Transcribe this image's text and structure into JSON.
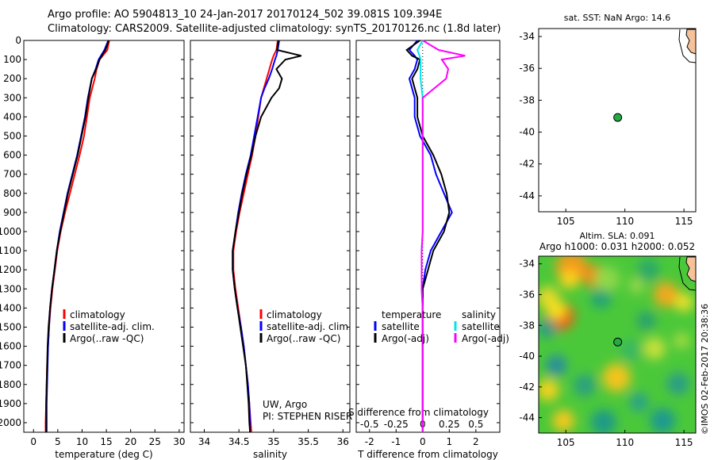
{
  "header": {
    "line1": "Argo profile: AO 5904813_10 24-Jan-2017 20170124_502 39.081S 109.394E",
    "line2": "Climatology: CARS2009. Satellite-adjusted climatology: synTS_20170126.nc (1.8d later)"
  },
  "depth_ticks": [
    "0",
    "100",
    "200",
    "300",
    "400",
    "500",
    "600",
    "700",
    "800",
    "900",
    "1000",
    "1100",
    "1200",
    "1300",
    "1400",
    "1500",
    "1600",
    "1700",
    "1800",
    "1900",
    "2000"
  ],
  "colors": {
    "climatology": "#ff0000",
    "satellite": "#0000ff",
    "argo": "#000000",
    "salinity_satellite": "#00e5ee",
    "salinity_argo": "#ff00ff",
    "land": "#f5c29a",
    "float_marker": "#22aa44"
  },
  "footer_stamp": "©IMOS 02-Feb-2017 20:38:36",
  "chart_data": [
    {
      "id": "temperature",
      "type": "line",
      "xlabel": "temperature (deg C)",
      "ylabel": "",
      "xlim": [
        -2,
        31
      ],
      "ylim": [
        2050,
        0
      ],
      "xticks": [
        "0",
        "5",
        "10",
        "15",
        "20",
        "25",
        "30"
      ],
      "xtick_values": [
        0,
        5,
        10,
        15,
        20,
        25,
        30
      ],
      "legend": [
        "climatology",
        "satellite-adj. clim.",
        "Argo(..raw -QC)"
      ],
      "depth": [
        0,
        50,
        100,
        150,
        200,
        300,
        400,
        500,
        600,
        700,
        800,
        900,
        1000,
        1100,
        1200,
        1300,
        1400,
        1500,
        1600,
        1700,
        1800,
        1900,
        2000,
        2050
      ],
      "series": [
        {
          "name": "climatology",
          "color": "#ff0000",
          "values": [
            15.6,
            15.2,
            13.6,
            13.0,
            12.6,
            11.6,
            11.0,
            10.4,
            9.5,
            8.5,
            7.5,
            6.5,
            5.6,
            4.9,
            4.4,
            3.9,
            3.5,
            3.2,
            3.0,
            2.8,
            2.7,
            2.6,
            2.5,
            2.5
          ]
        },
        {
          "name": "satellite-adj. clim.",
          "color": "#0000ff",
          "values": [
            15.4,
            14.6,
            13.4,
            12.8,
            12.0,
            11.2,
            10.6,
            9.8,
            9.0,
            8.0,
            7.0,
            6.2,
            5.4,
            4.8,
            4.3,
            3.8,
            3.4,
            3.2,
            3.0,
            2.9,
            2.8,
            2.7,
            2.7,
            2.7
          ]
        },
        {
          "name": "Argo(..raw -QC)",
          "color": "#000000",
          "values": [
            15.5,
            14.8,
            13.6,
            12.9,
            12.0,
            11.3,
            10.7,
            9.9,
            9.1,
            8.1,
            7.1,
            6.3,
            5.5,
            4.8,
            4.3,
            3.8,
            3.4,
            3.1,
            2.9,
            2.8,
            2.7,
            2.6,
            2.6,
            2.6
          ]
        }
      ]
    },
    {
      "id": "salinity",
      "type": "line",
      "xlabel": "salinity",
      "ylabel": "",
      "xlim": [
        33.8,
        36.1
      ],
      "ylim": [
        2050,
        0
      ],
      "xticks": [
        "34",
        "34.5",
        "35",
        "35.5",
        "36"
      ],
      "xtick_values": [
        34,
        34.5,
        35,
        35.5,
        36
      ],
      "legend": [
        "climatology",
        "satellite-adj. clim.",
        "Argo(..raw -QC)"
      ],
      "annotation": [
        "UW, Argo",
        "PI: STEPHEN RISER"
      ],
      "depth": [
        0,
        50,
        80,
        100,
        150,
        200,
        250,
        300,
        400,
        500,
        600,
        700,
        800,
        900,
        1000,
        1100,
        1200,
        1300,
        1400,
        1500,
        1600,
        1700,
        1800,
        1900,
        2000,
        2050
      ],
      "series": [
        {
          "name": "climatology",
          "color": "#ff0000",
          "values": [
            35.06,
            35.04,
            35.0,
            34.98,
            34.94,
            34.9,
            34.86,
            34.82,
            34.78,
            34.74,
            34.69,
            34.63,
            34.57,
            34.51,
            34.46,
            34.42,
            34.42,
            34.45,
            34.49,
            34.53,
            34.57,
            34.6,
            34.63,
            34.65,
            34.67,
            34.68
          ]
        },
        {
          "name": "satellite-adj. clim.",
          "color": "#0000ff",
          "values": [
            35.08,
            35.06,
            35.04,
            35.02,
            34.98,
            34.93,
            34.87,
            34.82,
            34.77,
            34.72,
            34.67,
            34.6,
            34.54,
            34.49,
            34.45,
            34.41,
            34.41,
            34.44,
            34.48,
            34.53,
            34.57,
            34.6,
            34.63,
            34.65,
            34.66,
            34.66
          ]
        },
        {
          "name": "Argo(..raw -QC)",
          "color": "#000000",
          "values": [
            35.07,
            35.05,
            35.4,
            35.17,
            35.04,
            35.12,
            35.08,
            34.97,
            34.82,
            34.74,
            34.68,
            34.61,
            34.55,
            34.5,
            34.45,
            34.41,
            34.41,
            34.44,
            34.48,
            34.52,
            34.56,
            34.6,
            34.62,
            34.64,
            34.65,
            34.66
          ]
        }
      ]
    },
    {
      "id": "difference",
      "type": "line",
      "xlabel": "T difference from climatology",
      "xlabel2": "S difference from climatology",
      "ylabel": "",
      "xlim": [
        -2.5,
        2.9
      ],
      "ylim": [
        2050,
        0
      ],
      "xticks": [
        "-2",
        "-1",
        "0",
        "1",
        "2"
      ],
      "xtick_values": [
        -2,
        -1,
        0,
        1,
        2
      ],
      "xticks2": [
        "-0.5",
        "-0.25",
        "0",
        "0.25",
        "0.5"
      ],
      "xtick2_values": [
        -0.5,
        -0.25,
        0,
        0.25,
        0.5
      ],
      "legend_temperature": [
        "temperature",
        "satellite",
        "Argo(-adj)"
      ],
      "legend_salinity": [
        "salinity",
        "satellite",
        "Argo(-adj)"
      ],
      "depth": [
        0,
        50,
        80,
        100,
        150,
        200,
        300,
        400,
        500,
        600,
        700,
        800,
        900,
        1000,
        1100,
        1200,
        1300,
        1400,
        1500,
        1600,
        1700,
        1800,
        1900,
        2000,
        2050
      ],
      "series": [
        {
          "name": "temperature satellite",
          "color": "#0000ff",
          "values": [
            -0.2,
            -0.5,
            -0.3,
            -0.2,
            -0.3,
            -0.5,
            -0.3,
            -0.3,
            -0.1,
            0.3,
            0.5,
            0.8,
            1.1,
            0.7,
            0.3,
            0.1,
            0.0,
            0.0,
            0.0,
            0.0,
            0.0,
            0.0,
            0.0,
            0.0,
            0.0
          ]
        },
        {
          "name": "temperature Argo(-adj)",
          "color": "#000000",
          "values": [
            -0.1,
            -0.6,
            -0.4,
            -0.1,
            -0.2,
            -0.4,
            -0.2,
            -0.2,
            0.0,
            0.4,
            0.7,
            0.9,
            1.0,
            0.8,
            0.4,
            0.2,
            0.0,
            0.0,
            0.0,
            0.0,
            0.0,
            0.0,
            0.0,
            0.0,
            0.0
          ]
        },
        {
          "name": "salinity satellite",
          "color": "#00e5ee",
          "values": [
            0.0,
            -0.05,
            -0.03,
            -0.02,
            -0.02,
            -0.02,
            0.0,
            0.0,
            0.0,
            0.0,
            0.0,
            0.0,
            0.0,
            0.0,
            -0.01,
            -0.01,
            -0.01,
            0.0,
            0.0,
            0.0,
            0.0,
            0.0,
            0.0,
            0.0,
            0.0
          ]
        },
        {
          "name": "salinity Argo(-adj)",
          "color": "#ff00ff",
          "values": [
            0.0,
            0.15,
            0.4,
            0.18,
            0.24,
            0.22,
            0.0,
            0.0,
            0.0,
            0.0,
            0.0,
            0.0,
            0.0,
            0.0,
            -0.01,
            -0.01,
            -0.01,
            0.0,
            0.0,
            0.0,
            0.0,
            0.0,
            0.0,
            0.0,
            0.0
          ]
        }
      ]
    },
    {
      "id": "sst-map",
      "type": "scatter",
      "title": "sat. SST: NaN Argo: 14.6",
      "xlim": [
        102.7,
        116.0
      ],
      "ylim": [
        -45.0,
        -33.5
      ],
      "xticks": [
        "105",
        "110",
        "115"
      ],
      "xtick_values": [
        105,
        110,
        115
      ],
      "yticks": [
        "-34",
        "-36",
        "-38",
        "-40",
        "-42",
        "-44"
      ],
      "ytick_values": [
        -34,
        -36,
        -38,
        -40,
        -42,
        -44
      ],
      "points": [
        {
          "x": 109.394,
          "y": -39.081
        }
      ]
    },
    {
      "id": "sla-map",
      "type": "heatmap",
      "title": "Altim. SLA: 0.091",
      "subtitle": "Argo h1000: 0.031 h2000: 0.052",
      "xlim": [
        102.7,
        116.0
      ],
      "ylim": [
        -45.0,
        -33.5
      ],
      "xticks": [
        "105",
        "110",
        "115"
      ],
      "xtick_values": [
        105,
        110,
        115
      ],
      "yticks": [
        "-34",
        "-36",
        "-38",
        "-40",
        "-42",
        "-44"
      ],
      "ytick_values": [
        -34,
        -36,
        -38,
        -40,
        -42,
        -44
      ],
      "points": [
        {
          "x": 109.394,
          "y": -39.081
        }
      ]
    }
  ]
}
